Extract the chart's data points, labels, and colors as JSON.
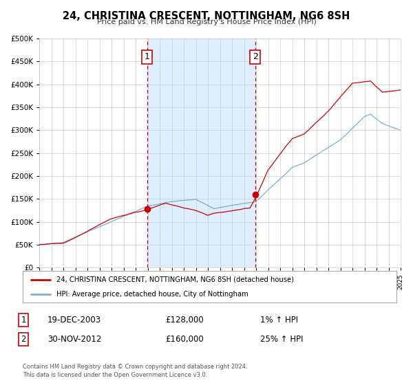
{
  "title": "24, CHRISTINA CRESCENT, NOTTINGHAM, NG6 8SH",
  "subtitle": "Price paid vs. HM Land Registry's House Price Index (HPI)",
  "ylim": [
    0,
    500000
  ],
  "yticks": [
    0,
    50000,
    100000,
    150000,
    200000,
    250000,
    300000,
    350000,
    400000,
    450000,
    500000
  ],
  "ytick_labels": [
    "£0",
    "£50K",
    "£100K",
    "£150K",
    "£200K",
    "£250K",
    "£300K",
    "£350K",
    "£400K",
    "£450K",
    "£500K"
  ],
  "x_start_year": 1995,
  "x_end_year": 2025,
  "sale1_date": 2003.96,
  "sale1_price": 128000,
  "sale1_label": "1",
  "sale1_text": "19-DEC-2003",
  "sale1_amount": "£128,000",
  "sale1_hpi": "1% ↑ HPI",
  "sale2_date": 2012.92,
  "sale2_price": 160000,
  "sale2_label": "2",
  "sale2_text": "30-NOV-2012",
  "sale2_amount": "£160,000",
  "sale2_hpi": "25% ↑ HPI",
  "hpi_color": "#7aaed6",
  "price_color": "#cc0000",
  "shade_color": "#ddeeff",
  "grid_color": "#cccccc",
  "bg_color": "#ffffff",
  "legend_label1": "24, CHRISTINA CRESCENT, NOTTINGHAM, NG6 8SH (detached house)",
  "legend_label2": "HPI: Average price, detached house, City of Nottingham",
  "footer1": "Contains HM Land Registry data © Crown copyright and database right 2024.",
  "footer2": "This data is licensed under the Open Government Licence v3.0."
}
